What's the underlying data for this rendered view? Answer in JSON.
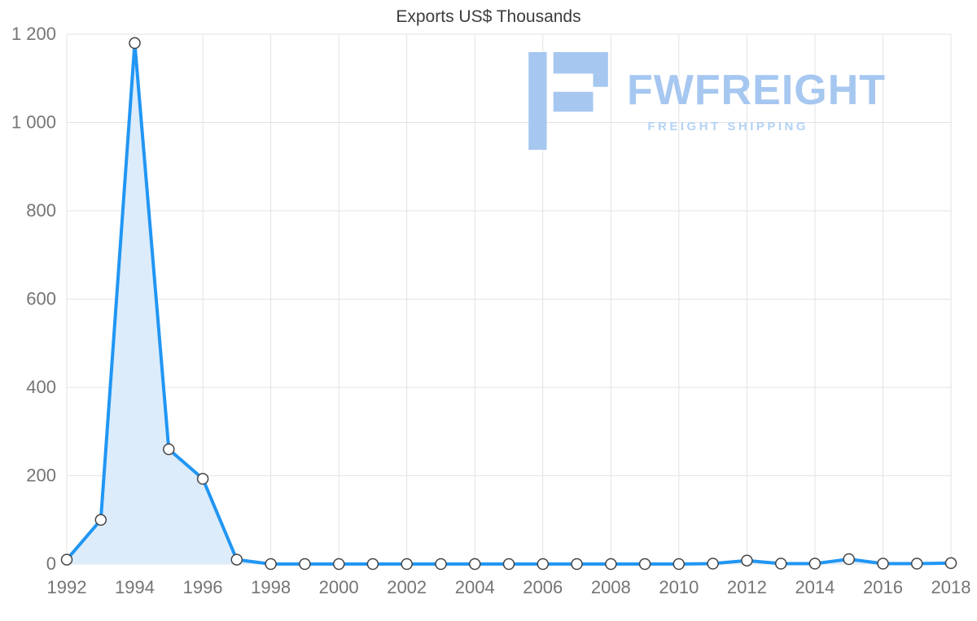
{
  "chart_data": {
    "type": "area",
    "title": "Exports US$ Thousands",
    "x": [
      1992,
      1993,
      1994,
      1995,
      1996,
      1997,
      1998,
      1999,
      2000,
      2001,
      2002,
      2003,
      2004,
      2005,
      2006,
      2007,
      2008,
      2009,
      2010,
      2011,
      2012,
      2013,
      2014,
      2015,
      2016,
      2017,
      2018
    ],
    "values": [
      10,
      100,
      1180,
      260,
      193,
      10,
      0,
      0,
      0,
      0,
      0,
      0,
      0,
      0,
      0,
      0,
      0,
      0,
      0,
      1,
      8,
      1,
      1,
      11,
      1,
      1,
      2
    ],
    "xticks": [
      "1992",
      "1994",
      "1996",
      "1998",
      "2000",
      "2002",
      "2004",
      "2006",
      "2008",
      "2010",
      "2012",
      "2014",
      "2016",
      "2018"
    ],
    "yticks": [
      "1 200",
      "1 000",
      "800",
      "600",
      "400",
      "200",
      "0"
    ],
    "ylim": [
      0,
      1200
    ],
    "grid": true,
    "legend": "none",
    "line_color": "#2196f3",
    "fill_color": "#dcecfb",
    "marker_fill": "#ffffff",
    "marker_stroke": "#444444",
    "grid_color": "#e3e3e3",
    "tick_color": "#757575",
    "title_color": "#3d3d3d"
  },
  "watermark": {
    "brand": "FWFREIGHT",
    "tagline": "FREIGHT SHIPPING",
    "color": "#a6c7f0",
    "tagline_color": "#b4d2f4"
  }
}
